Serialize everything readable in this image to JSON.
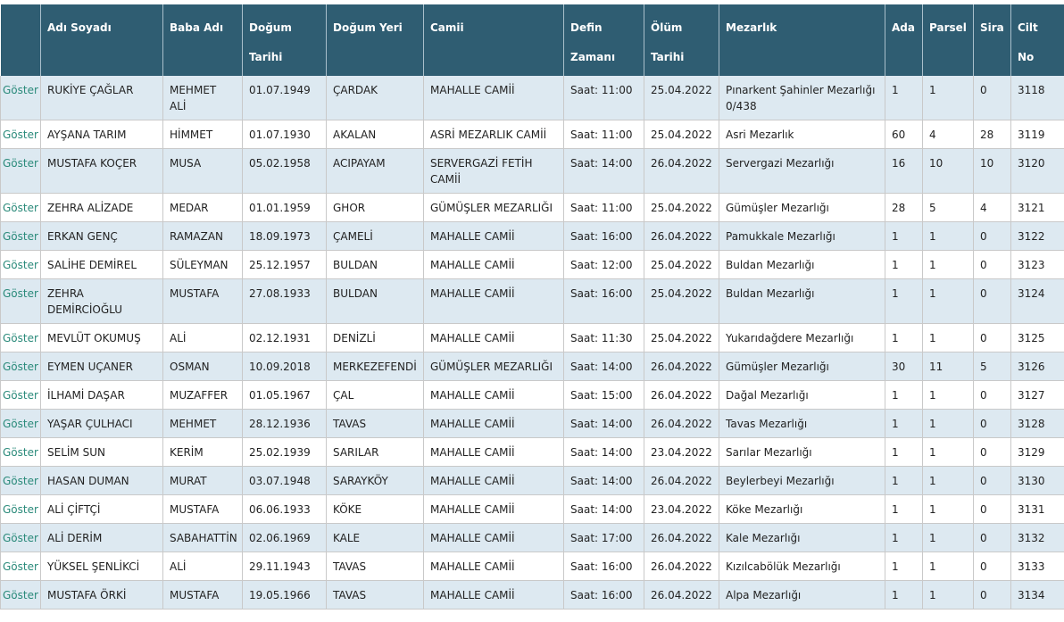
{
  "table": {
    "header": [
      [
        ""
      ],
      [
        "Adı Soyadı"
      ],
      [
        "Baba Adı"
      ],
      [
        "Doğum",
        "Tarihi"
      ],
      [
        "Doğum Yeri"
      ],
      [
        "Camii"
      ],
      [
        "Defin",
        "Zamanı"
      ],
      [
        "Ölüm",
        "Tarihi"
      ],
      [
        "Mezarlık"
      ],
      [
        "Ada"
      ],
      [
        "Parsel"
      ],
      [
        "Sira"
      ],
      [
        "Cilt",
        "No"
      ]
    ],
    "rows": [
      [
        "Göster",
        "RUKİYE ÇAĞLAR",
        "MEHMET ALİ",
        "01.07.1949",
        "ÇARDAK",
        "MAHALLE CAMİİ",
        "Saat: 11:00",
        "25.04.2022",
        "Pınarkent Şahinler Mezarlığı 0/438",
        "1",
        "1",
        "0",
        "3118"
      ],
      [
        "Göster",
        "AYŞANA TARIM",
        "HİMMET",
        "01.07.1930",
        "AKALAN",
        "ASRİ MEZARLIK CAMİİ",
        "Saat: 11:00",
        "25.04.2022",
        "Asri Mezarlık",
        "60",
        "4",
        "28",
        "3119"
      ],
      [
        "Göster",
        "MUSTAFA KOÇER",
        "MUSA",
        "05.02.1958",
        "ACIPAYAM",
        "SERVERGAZİ FETİH CAMİİ",
        "Saat: 14:00",
        "26.04.2022",
        "Servergazi Mezarlığı",
        "16",
        "10",
        "10",
        "3120"
      ],
      [
        "Göster",
        "ZEHRA ALİZADE",
        "MEDAR",
        "01.01.1959",
        "GHOR",
        "GÜMÜŞLER MEZARLIĞI",
        "Saat: 11:00",
        "25.04.2022",
        "Gümüşler Mezarlığı",
        "28",
        "5",
        "4",
        "3121"
      ],
      [
        "Göster",
        "ERKAN GENÇ",
        "RAMAZAN",
        "18.09.1973",
        "ÇAMELİ",
        "MAHALLE CAMİİ",
        "Saat: 16:00",
        "26.04.2022",
        "Pamukkale Mezarlığı",
        "1",
        "1",
        "0",
        "3122"
      ],
      [
        "Göster",
        "SALİHE DEMİREL",
        "SÜLEYMAN",
        "25.12.1957",
        "BULDAN",
        "MAHALLE CAMİİ",
        "Saat: 12:00",
        "25.04.2022",
        "Buldan Mezarlığı",
        "1",
        "1",
        "0",
        "3123"
      ],
      [
        "Göster",
        "ZEHRA DEMİRCİOĞLU",
        "MUSTAFA",
        "27.08.1933",
        "BULDAN",
        "MAHALLE CAMİİ",
        "Saat: 16:00",
        "25.04.2022",
        "Buldan Mezarlığı",
        "1",
        "1",
        "0",
        "3124"
      ],
      [
        "Göster",
        "MEVLÜT OKUMUŞ",
        "ALİ",
        "02.12.1931",
        "DENİZLİ",
        "MAHALLE CAMİİ",
        "Saat: 11:30",
        "25.04.2022",
        "Yukarıdağdere Mezarlığı",
        "1",
        "1",
        "0",
        "3125"
      ],
      [
        "Göster",
        "EYMEN UÇANER",
        "OSMAN",
        "10.09.2018",
        "MERKEZEFENDİ",
        "GÜMÜŞLER MEZARLIĞI",
        "Saat: 14:00",
        "26.04.2022",
        "Gümüşler Mezarlığı",
        "30",
        "11",
        "5",
        "3126"
      ],
      [
        "Göster",
        "İLHAMİ DAŞAR",
        "MUZAFFER",
        "01.05.1967",
        "ÇAL",
        "MAHALLE CAMİİ",
        "Saat: 15:00",
        "26.04.2022",
        "Dağal Mezarlığı",
        "1",
        "1",
        "0",
        "3127"
      ],
      [
        "Göster",
        "YAŞAR ÇULHACI",
        "MEHMET",
        "28.12.1936",
        "TAVAS",
        "MAHALLE CAMİİ",
        "Saat: 14:00",
        "26.04.2022",
        "Tavas Mezarlığı",
        "1",
        "1",
        "0",
        "3128"
      ],
      [
        "Göster",
        "SELİM SUN",
        "KERİM",
        "25.02.1939",
        "SARILAR",
        "MAHALLE CAMİİ",
        "Saat: 14:00",
        "23.04.2022",
        "Sarılar Mezarlığı",
        "1",
        "1",
        "0",
        "3129"
      ],
      [
        "Göster",
        "HASAN DUMAN",
        "MURAT",
        "03.07.1948",
        "SARAYKÖY",
        "MAHALLE CAMİİ",
        "Saat: 14:00",
        "26.04.2022",
        "Beylerbeyi Mezarlığı",
        "1",
        "1",
        "0",
        "3130"
      ],
      [
        "Göster",
        "ALİ ÇİFTÇİ",
        "MUSTAFA",
        "06.06.1933",
        "KÖKE",
        "MAHALLE CAMİİ",
        "Saat: 14:00",
        "23.04.2022",
        "Köke Mezarlığı",
        "1",
        "1",
        "0",
        "3131"
      ],
      [
        "Göster",
        "ALİ DERİM",
        "SABAHATTİN",
        "02.06.1969",
        "KALE",
        "MAHALLE CAMİİ",
        "Saat: 17:00",
        "26.04.2022",
        "Kale Mezarlığı",
        "1",
        "1",
        "0",
        "3132"
      ],
      [
        "Göster",
        "YÜKSEL ŞENLİKCİ",
        "ALİ",
        "29.11.1943",
        "TAVAS",
        "MAHALLE CAMİİ",
        "Saat: 16:00",
        "26.04.2022",
        "Kızılcabölük Mezarlığı",
        "1",
        "1",
        "0",
        "3133"
      ],
      [
        "Göster",
        "MUSTAFA ÖRKİ",
        "MUSTAFA",
        "19.05.1966",
        "TAVAS",
        "MAHALLE CAMİİ",
        "Saat: 16:00",
        "26.04.2022",
        "Alpa Mezarlığı",
        "1",
        "1",
        "0",
        "3134"
      ]
    ]
  }
}
